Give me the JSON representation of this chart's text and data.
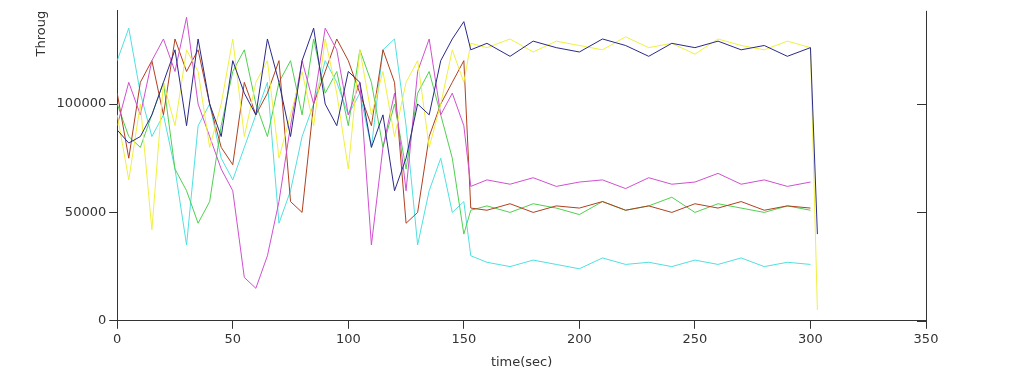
{
  "chart_data": {
    "type": "line",
    "xlabel": "time(sec)",
    "ylabel": "Throug",
    "x": [
      0,
      5,
      10,
      15,
      20,
      25,
      30,
      35,
      40,
      45,
      50,
      55,
      60,
      65,
      70,
      75,
      80,
      85,
      90,
      95,
      100,
      105,
      110,
      115,
      120,
      125,
      130,
      135,
      140,
      145,
      150,
      153,
      160,
      170,
      180,
      190,
      200,
      210,
      220,
      230,
      240,
      250,
      260,
      270,
      280,
      290,
      300,
      303
    ],
    "series": [
      {
        "color": "#2a2a8a",
        "values": [
          88000,
          82000,
          85000,
          95000,
          110000,
          125000,
          90000,
          130000,
          100000,
          85000,
          120000,
          105000,
          95000,
          130000,
          110000,
          85000,
          120000,
          135000,
          100000,
          90000,
          115000,
          110000,
          80000,
          95000,
          60000,
          75000,
          100000,
          95000,
          120000,
          130000,
          138000,
          125000,
          128000,
          122000,
          129000,
          126000,
          124000,
          130000,
          127000,
          122000,
          128000,
          126000,
          129000,
          125000,
          127000,
          122000,
          126000,
          40000
        ]
      },
      {
        "color": "#f0f040",
        "values": [
          95000,
          65000,
          100000,
          42000,
          110000,
          90000,
          125000,
          115000,
          80000,
          100000,
          130000,
          85000,
          110000,
          120000,
          75000,
          95000,
          115000,
          90000,
          130000,
          105000,
          70000,
          125000,
          95000,
          115000,
          85000,
          110000,
          120000,
          80000,
          100000,
          125000,
          110000,
          128000,
          126000,
          130000,
          124000,
          129000,
          127000,
          125000,
          131000,
          126000,
          128000,
          123000,
          130000,
          127000,
          125000,
          129000,
          126000,
          5000
        ]
      },
      {
        "color": "#d050d0",
        "values": [
          90000,
          110000,
          95000,
          120000,
          130000,
          115000,
          140000,
          100000,
          85000,
          70000,
          60000,
          20000,
          15000,
          30000,
          55000,
          90000,
          120000,
          100000,
          135000,
          125000,
          95000,
          110000,
          35000,
          80000,
          105000,
          60000,
          115000,
          130000,
          95000,
          105000,
          90000,
          62000,
          65000,
          63000,
          66000,
          62000,
          64000,
          65000,
          61000,
          66000,
          63000,
          64000,
          68000,
          63000,
          65000,
          62000,
          64000,
          null
        ]
      },
      {
        "color": "#b04020",
        "values": [
          105000,
          75000,
          110000,
          120000,
          95000,
          130000,
          115000,
          125000,
          100000,
          80000,
          72000,
          110000,
          95000,
          105000,
          120000,
          55000,
          50000,
          100000,
          115000,
          130000,
          120000,
          105000,
          90000,
          125000,
          110000,
          45000,
          50000,
          85000,
          100000,
          110000,
          120000,
          52000,
          51000,
          54000,
          50000,
          53000,
          52000,
          55000,
          51000,
          53000,
          50000,
          54000,
          52000,
          55000,
          51000,
          53000,
          52000,
          null
        ]
      },
      {
        "color": "#50d050",
        "values": [
          100000,
          85000,
          80000,
          95000,
          110000,
          70000,
          60000,
          45000,
          55000,
          90000,
          115000,
          125000,
          100000,
          85000,
          110000,
          120000,
          95000,
          130000,
          105000,
          115000,
          90000,
          125000,
          110000,
          80000,
          100000,
          70000,
          105000,
          115000,
          95000,
          75000,
          40000,
          51000,
          53000,
          50000,
          54000,
          52000,
          49000,
          55000,
          51000,
          53000,
          57000,
          50000,
          54000,
          52000,
          50000,
          53000,
          51000,
          null
        ]
      },
      {
        "color": "#50e0e0",
        "values": [
          120000,
          135000,
          105000,
          85000,
          95000,
          70000,
          35000,
          90000,
          100000,
          75000,
          65000,
          80000,
          95000,
          110000,
          45000,
          60000,
          85000,
          100000,
          120000,
          110000,
          95000,
          105000,
          80000,
          125000,
          130000,
          90000,
          35000,
          60000,
          75000,
          50000,
          55000,
          30000,
          27000,
          25000,
          28000,
          26000,
          24000,
          29000,
          26000,
          27000,
          25000,
          28000,
          26000,
          29000,
          25000,
          27000,
          26000,
          null
        ]
      }
    ],
    "xlim": [
      0,
      350
    ],
    "xticks": [
      0,
      50,
      100,
      150,
      200,
      250,
      300,
      350
    ],
    "ylim": [
      0,
      143000
    ],
    "yticks": [
      0,
      50000,
      100000
    ],
    "grid": false,
    "legend": false,
    "marker": "none",
    "line_style": "solid"
  }
}
